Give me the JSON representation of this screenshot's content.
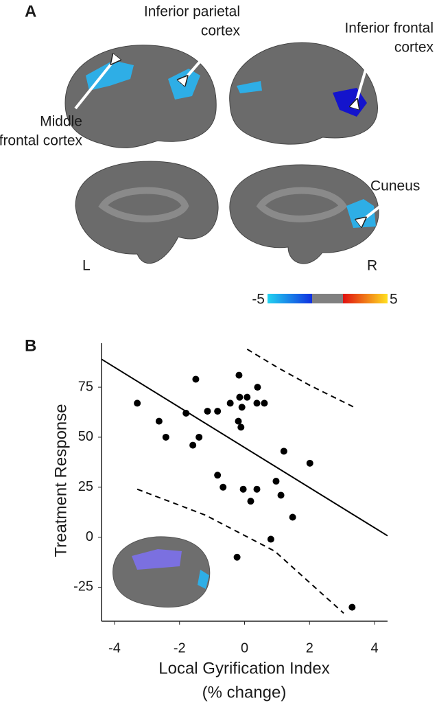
{
  "panel_a": {
    "label": "A",
    "annotations": [
      {
        "lines": [
          "Inferior parietal",
          "cortex"
        ]
      },
      {
        "lines": [
          "Inferior frontal",
          "cortex"
        ]
      },
      {
        "lines": [
          "Middle",
          "frontal cortex"
        ]
      },
      {
        "lines": [
          "Cuneus"
        ]
      }
    ],
    "hemisphere_labels": [
      "L",
      "R"
    ],
    "colorbar": {
      "min": -5,
      "max": 5
    }
  },
  "chart_data": {
    "type": "scatter",
    "panel_label": "B",
    "ylabel": "Treatment Response",
    "xlabel": [
      "Local Gyrification Index",
      "(% change)"
    ],
    "x": [
      -3.3,
      -2.63,
      -2.42,
      -1.8,
      -1.59,
      -1.5,
      -1.4,
      -1.14,
      -0.83,
      -0.83,
      -0.66,
      -0.44,
      -0.19,
      -0.17,
      -0.15,
      -0.11,
      -0.08,
      0.08,
      -0.04,
      -0.23,
      0.19,
      0.4,
      0.38,
      0.61,
      0.38,
      0.81,
      0.97,
      1.12,
      1.21,
      1.48,
      2.01,
      3.31
    ],
    "values": [
      67,
      58,
      50,
      62,
      46,
      79,
      50,
      63,
      63,
      31,
      25,
      67,
      58,
      81,
      70,
      55,
      65,
      70,
      24,
      -10,
      18,
      75,
      67,
      67,
      24,
      -1,
      28,
      21,
      43,
      10,
      37,
      -35
    ],
    "color": "#000000",
    "fit": {
      "x": [
        -4.4,
        4.4
      ],
      "y": [
        89,
        0.7
      ]
    },
    "ci_upper": {
      "x": [
        0.08,
        1,
        2,
        3.37
      ],
      "y": [
        94,
        85,
        76,
        65
      ]
    },
    "ci_lower": {
      "x": [
        -3.3,
        -1.2,
        0.93,
        3.05
      ],
      "y": [
        24,
        11,
        -7,
        -38
      ]
    },
    "xlim": [
      -4.4,
      4.4
    ],
    "ylim": [
      -42,
      97
    ],
    "xticks": [
      -4,
      -2,
      0,
      2,
      4
    ],
    "yticks": [
      -25,
      0,
      25,
      50,
      75
    ]
  }
}
